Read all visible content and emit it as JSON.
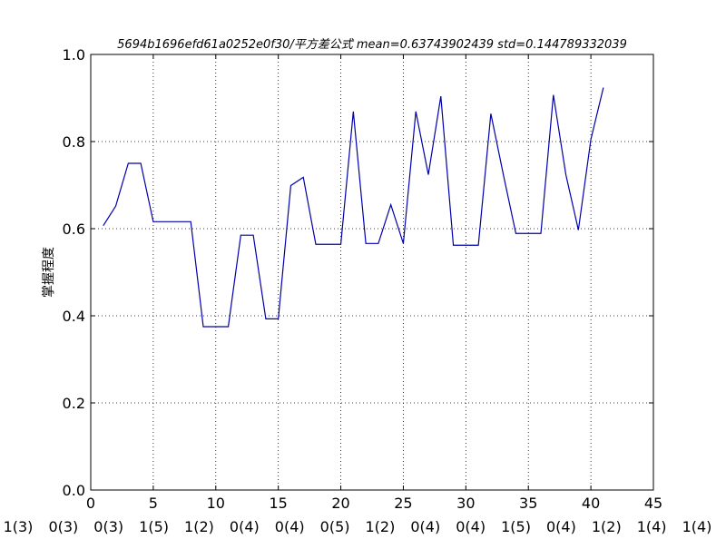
{
  "chart_data": {
    "type": "line",
    "title": "5694b1696efd61a0252e0f30/平方差公式 mean=0.63743902439 std=0.144789332039",
    "xlabel": "",
    "ylabel": "掌握程度",
    "xlim": [
      0,
      45
    ],
    "ylim": [
      0.0,
      1.0
    ],
    "x_ticks": [
      0,
      5,
      10,
      15,
      20,
      25,
      30,
      35,
      40,
      45
    ],
    "x_tick_labels": [
      "0",
      "5",
      "10",
      "15",
      "20",
      "25",
      "30",
      "35",
      "40",
      "45"
    ],
    "y_ticks": [
      0.0,
      0.2,
      0.4,
      0.6,
      0.8,
      1.0
    ],
    "y_tick_labels": [
      "0.0",
      "0.2",
      "0.4",
      "0.6",
      "0.8",
      "1.0"
    ],
    "grid": true,
    "bottom_labels": [
      "1(3)",
      "0(3)",
      "0(3)",
      "1(5)",
      "1(2)",
      "0(4)",
      "0(4)",
      "0(5)",
      "1(2)",
      "0(4)",
      "0(4)",
      "1(5)",
      "0(4)",
      "1(2)",
      "1(4)",
      "1(4)"
    ],
    "series": [
      {
        "color": "#0000aa",
        "x": [
          1,
          2,
          3,
          4,
          5,
          6,
          7,
          8,
          9,
          10,
          11,
          12,
          13,
          14,
          15,
          16,
          17,
          18,
          19,
          20,
          21,
          22,
          23,
          24,
          25,
          26,
          27,
          28,
          29,
          30,
          31,
          32,
          33,
          34,
          35,
          36,
          37,
          38,
          39,
          40,
          41
        ],
        "y": [
          0.607,
          0.652,
          0.75,
          0.75,
          0.616,
          0.616,
          0.616,
          0.616,
          0.375,
          0.375,
          0.375,
          0.585,
          0.585,
          0.393,
          0.393,
          0.699,
          0.718,
          0.564,
          0.564,
          0.564,
          0.869,
          0.566,
          0.566,
          0.655,
          0.566,
          0.869,
          0.724,
          0.904,
          0.562,
          0.562,
          0.562,
          0.864,
          0.724,
          0.589,
          0.589,
          0.589,
          0.907,
          0.724,
          0.597,
          0.805,
          0.924
        ]
      }
    ]
  }
}
